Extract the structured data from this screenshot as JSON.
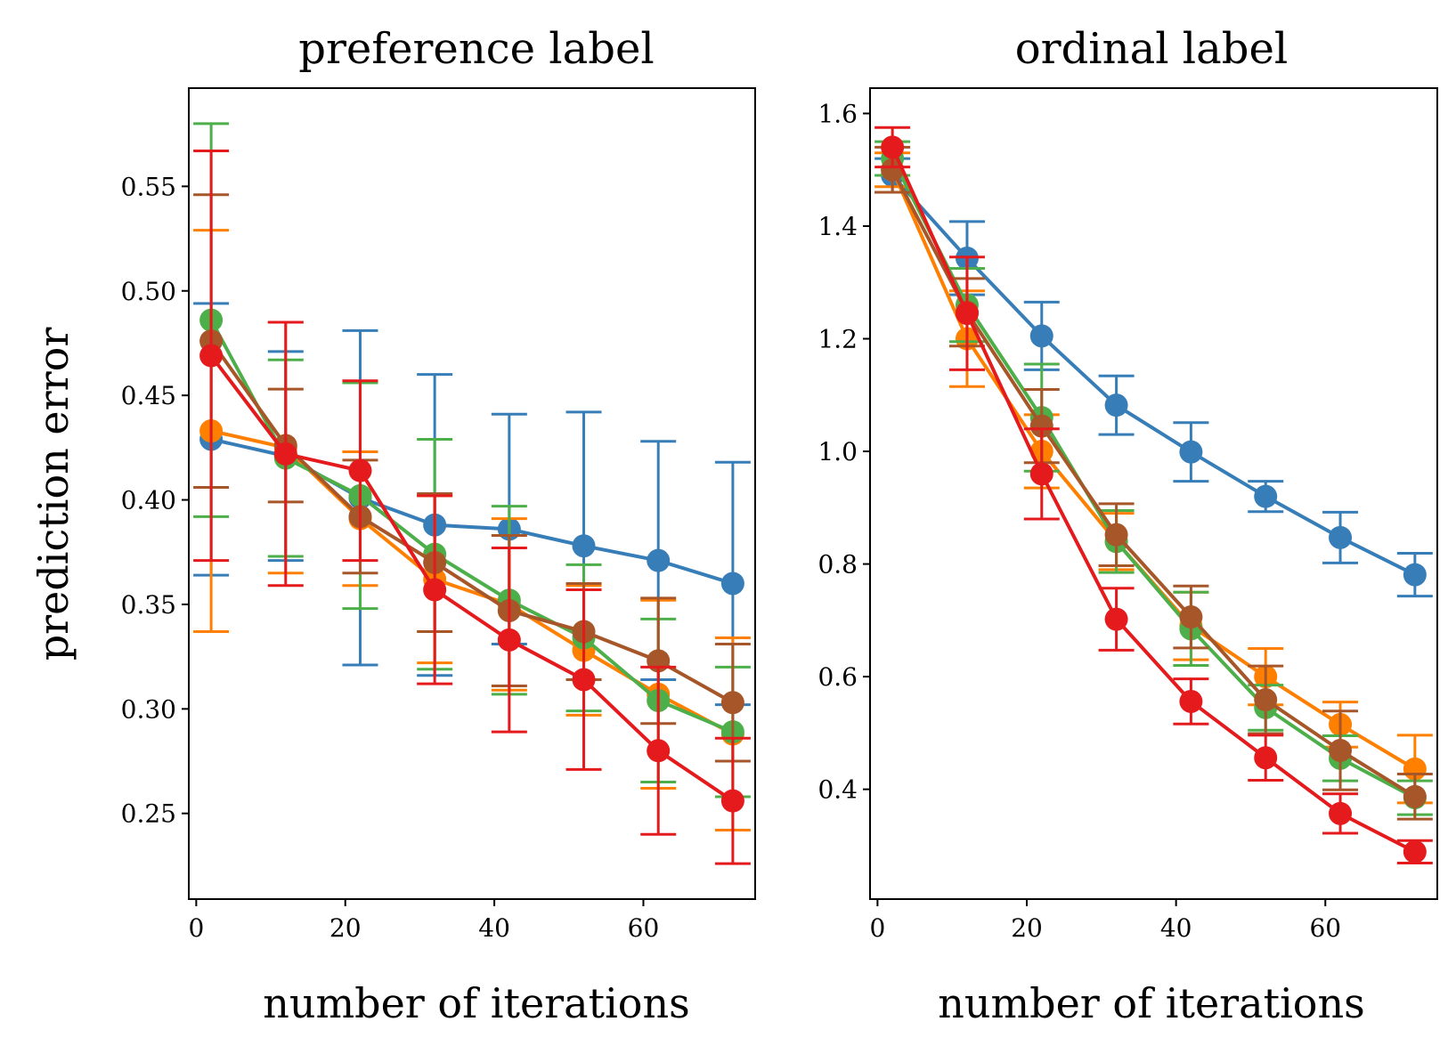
{
  "colors": [
    "#377eb8",
    "#ff7f00",
    "#4daf4a",
    "#a65628",
    "#e41a1c"
  ],
  "chart_data": [
    {
      "type": "line",
      "title": "preference label",
      "xlabel": "number of iterations",
      "ylabel": "prediction error",
      "xlim": [
        -1,
        75
      ],
      "ylim": [
        0.209,
        0.597
      ],
      "xticks": [
        0,
        20,
        40,
        60
      ],
      "yticks": [
        0.25,
        0.3,
        0.35,
        0.4,
        0.45,
        0.5,
        0.55
      ],
      "ytick_labels": [
        "0.25",
        "0.30",
        "0.35",
        "0.40",
        "0.45",
        "0.50",
        "0.55"
      ],
      "legend": "none",
      "grid": false,
      "x": [
        2,
        12,
        22,
        32,
        42,
        52,
        62,
        72
      ],
      "series": [
        {
          "values": [
            0.429,
            0.421,
            0.401,
            0.388,
            0.386,
            0.378,
            0.371,
            0.36
          ],
          "errors": [
            0.065,
            0.05,
            0.08,
            0.072,
            0.055,
            0.064,
            0.057,
            0.058
          ]
        },
        {
          "values": [
            0.433,
            0.425,
            0.391,
            0.362,
            0.35,
            0.328,
            0.307,
            0.288
          ],
          "errors": [
            0.096,
            0.06,
            0.032,
            0.04,
            0.041,
            0.031,
            0.045,
            0.046
          ]
        },
        {
          "values": [
            0.486,
            0.42,
            0.402,
            0.374,
            0.352,
            0.334,
            0.304,
            0.289
          ],
          "errors": [
            0.094,
            0.047,
            0.054,
            0.055,
            0.045,
            0.035,
            0.039,
            0.031
          ]
        },
        {
          "values": [
            0.476,
            0.426,
            0.392,
            0.37,
            0.347,
            0.337,
            0.323,
            0.303
          ],
          "errors": [
            0.07,
            0.027,
            0.027,
            0.033,
            0.036,
            0.023,
            0.03,
            0.028
          ]
        },
        {
          "values": [
            0.469,
            0.422,
            0.414,
            0.357,
            0.333,
            0.314,
            0.28,
            0.256
          ],
          "errors": [
            0.098,
            0.063,
            0.043,
            0.045,
            0.044,
            0.043,
            0.04,
            0.03
          ]
        }
      ]
    },
    {
      "type": "line",
      "title": "ordinal label",
      "xlabel": "number of iterations",
      "ylabel": "",
      "xlim": [
        -1,
        75
      ],
      "ylim": [
        0.205,
        1.645
      ],
      "xticks": [
        0,
        20,
        40,
        60
      ],
      "yticks": [
        0.4,
        0.6,
        0.8,
        1.0,
        1.2,
        1.4,
        1.6
      ],
      "ytick_labels": [
        "0.4",
        "0.6",
        "0.8",
        "1.0",
        "1.2",
        "1.4",
        "1.6"
      ],
      "legend": "none",
      "grid": false,
      "x": [
        2,
        12,
        22,
        32,
        42,
        52,
        62,
        72
      ],
      "series": [
        {
          "values": [
            1.49,
            1.343,
            1.205,
            1.082,
            0.999,
            0.92,
            0.847,
            0.781
          ],
          "errors": [
            0.03,
            0.065,
            0.06,
            0.052,
            0.052,
            0.027,
            0.045,
            0.038
          ]
        },
        {
          "values": [
            1.5,
            1.2,
            1.0,
            0.84,
            0.69,
            0.6,
            0.515,
            0.436
          ],
          "errors": [
            0.03,
            0.085,
            0.065,
            0.05,
            0.06,
            0.05,
            0.04,
            0.06
          ]
        },
        {
          "values": [
            1.52,
            1.26,
            1.06,
            0.84,
            0.685,
            0.545,
            0.455,
            0.385
          ],
          "errors": [
            0.03,
            0.065,
            0.095,
            0.055,
            0.065,
            0.04,
            0.04,
            0.03
          ]
        },
        {
          "values": [
            1.5,
            1.247,
            1.045,
            0.852,
            0.706,
            0.559,
            0.469,
            0.387
          ],
          "errors": [
            0.04,
            0.06,
            0.065,
            0.055,
            0.055,
            0.06,
            0.07,
            0.04
          ]
        },
        {
          "values": [
            1.54,
            1.245,
            0.96,
            0.702,
            0.556,
            0.456,
            0.357,
            0.289
          ],
          "errors": [
            0.035,
            0.1,
            0.08,
            0.055,
            0.04,
            0.04,
            0.035,
            0.02
          ]
        }
      ]
    }
  ]
}
